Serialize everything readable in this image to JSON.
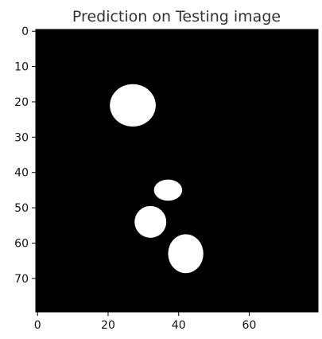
{
  "chart_data": {
    "type": "heatmap",
    "title": "Prediction on Testing image",
    "xlabel": "",
    "ylabel": "",
    "image_size": [
      80,
      80
    ],
    "xlim": [
      -0.5,
      79.5
    ],
    "ylim": [
      79.5,
      -0.5
    ],
    "x_ticks": [
      0,
      20,
      40,
      60
    ],
    "x_tick_labels": [
      "0",
      "20",
      "40",
      "60"
    ],
    "y_ticks": [
      0,
      10,
      20,
      30,
      40,
      50,
      60,
      70
    ],
    "y_tick_labels": [
      "0",
      "10",
      "20",
      "30",
      "40",
      "50",
      "60",
      "70"
    ],
    "grid": false,
    "colormap": "gray",
    "background_value": 0,
    "background_color": "#000000",
    "foreground_color": "#ffffff",
    "regions": [
      {
        "value": 1,
        "cx": 27,
        "cy": 21,
        "rx": 6.5,
        "ry": 6
      },
      {
        "value": 1,
        "cx": 37,
        "cy": 45,
        "rx": 4,
        "ry": 3
      },
      {
        "value": 1,
        "cx": 32,
        "cy": 54,
        "rx": 4.5,
        "ry": 4.5
      },
      {
        "value": 1,
        "cx": 42,
        "cy": 63,
        "rx": 5,
        "ry": 5.5
      }
    ]
  }
}
